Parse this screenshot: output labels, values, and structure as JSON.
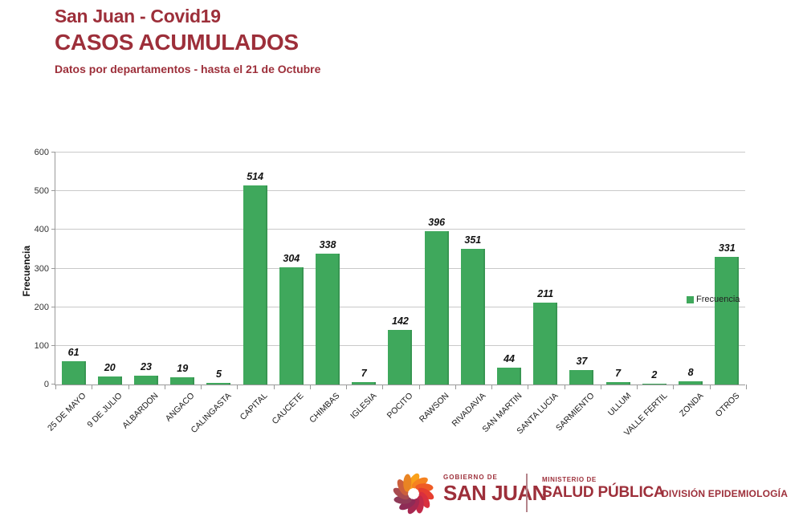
{
  "header": {
    "title_line1": "San Juan - Covid19",
    "title_line2": "CASOS ACUMULADOS",
    "subtitle": "Datos por departamentos - hasta el 21 de Octubre"
  },
  "chart_data": {
    "type": "bar",
    "title": "",
    "xlabel": "",
    "ylabel": "Frecuencia",
    "ylim": [
      0,
      600
    ],
    "yticks": [
      0,
      100,
      200,
      300,
      400,
      500,
      600
    ],
    "grid": true,
    "legend": {
      "label": "Frecuencia",
      "position": "right"
    },
    "categories": [
      "25 DE MAYO",
      "9 DE JULIO",
      "ALBARDON",
      "ANGACO",
      "CALINGASTA",
      "CAPITAL",
      "CAUCETE",
      "CHIMBAS",
      "IGLESIA",
      "POCITO",
      "RAWSON",
      "RIVADAVIA",
      "SAN MARTIN",
      "SANTA LUCIA",
      "SARMIENTO",
      "ULLUM",
      "VALLE FERTIL",
      "ZONDA",
      "OTROS"
    ],
    "values": [
      61,
      20,
      23,
      19,
      5,
      514,
      304,
      338,
      7,
      142,
      396,
      351,
      44,
      211,
      37,
      7,
      2,
      8,
      331
    ]
  },
  "footer": {
    "gov_small": "GOBIERNO DE",
    "gov_large": "SAN JUAN",
    "ministry_small": "MINISTERIO DE",
    "ministry_large": "SALUD PÚBLICA",
    "division": "DIVISIÓN EPIDEMIOLOGÍA"
  },
  "colors": {
    "accent_red": "#9d2f3a",
    "bar_green": "#3fa85c",
    "gridline": "#c9c9c9",
    "axis": "#999999",
    "logo_petals": [
      "#f9a11b",
      "#f58220",
      "#ef5b25",
      "#e63e30",
      "#d92f3e",
      "#c22a49",
      "#a62851",
      "#8e2b56",
      "#8f3a57",
      "#a84a4f",
      "#cc5f3c",
      "#e98423"
    ]
  }
}
